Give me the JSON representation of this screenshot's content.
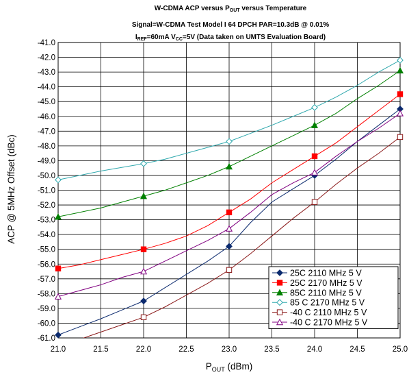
{
  "chart_data": {
    "type": "line",
    "title_parts": {
      "line1_prefix": "W-CDMA ACP versus P",
      "line1_sub": "OUT",
      "line1_suffix": " versus Temperature",
      "line2": "Signal=W-CDMA Test Model I 64 DPCH PAR=10.3dB @ 0.01%",
      "line3_a": "I",
      "line3_a_sub": "REF",
      "line3_b": "=60mA V",
      "line3_b_sub": "CC",
      "line3_c": "=5V (Data taken on UMTS Evaluation Board)"
    },
    "xlabel_main": "P",
    "xlabel_sub": "OUT",
    "xlabel_suffix": " (dBm)",
    "ylabel": "ACP @ 5MHz Offset (dBc)",
    "xlim": [
      21.0,
      25.0
    ],
    "ylim": [
      -61.0,
      -41.0
    ],
    "x_ticks": [
      "21.0",
      "21.5",
      "22.0",
      "22.5",
      "23.0",
      "23.5",
      "24.0",
      "24.5",
      "25.0"
    ],
    "y_ticks": [
      "-41.0",
      "-42.0",
      "-43.0",
      "-44.0",
      "-45.0",
      "-46.0",
      "-47.0",
      "-48.0",
      "-49.0",
      "-50.0",
      "-51.0",
      "-52.0",
      "-53.0",
      "-54.0",
      "-55.0",
      "-56.0",
      "-57.0",
      "-58.0",
      "-59.0",
      "-60.0",
      "-61.0"
    ],
    "grid": true,
    "legend_position": "bottom-right",
    "x_markers": [
      21,
      22,
      23,
      24,
      25
    ],
    "series": [
      {
        "name": "25C 2110 MHz  5 V",
        "color": "#0b2a6e",
        "marker": "diamond-filled",
        "x": [
          21.0,
          21.25,
          21.5,
          21.75,
          22.0,
          22.25,
          22.5,
          22.75,
          23.0,
          23.25,
          23.5,
          23.75,
          24.0,
          24.25,
          24.5,
          24.75,
          25.0
        ],
        "y": [
          -60.8,
          -60.25,
          -59.7,
          -59.1,
          -58.5,
          -57.6,
          -56.7,
          -55.8,
          -54.8,
          -53.2,
          -51.8,
          -50.9,
          -50.0,
          -48.9,
          -47.7,
          -46.6,
          -45.5
        ]
      },
      {
        "name": "25C 2170 MHz 5 V",
        "color": "#ff0000",
        "marker": "square-filled",
        "x": [
          21.0,
          21.25,
          21.5,
          21.75,
          22.0,
          22.25,
          22.5,
          22.75,
          23.0,
          23.25,
          23.5,
          23.75,
          24.0,
          24.25,
          24.5,
          24.75,
          25.0
        ],
        "y": [
          -56.3,
          -56.05,
          -55.7,
          -55.35,
          -55.0,
          -54.6,
          -54.1,
          -53.4,
          -52.5,
          -51.6,
          -50.5,
          -49.6,
          -48.7,
          -47.8,
          -46.7,
          -45.6,
          -44.5
        ]
      },
      {
        "name": "85C 2110 MHz  5 V",
        "color": "#008000",
        "marker": "triangle-filled",
        "x": [
          21.0,
          21.25,
          21.5,
          21.75,
          22.0,
          22.25,
          22.5,
          22.75,
          23.0,
          23.25,
          23.5,
          23.75,
          24.0,
          24.25,
          24.5,
          24.75,
          25.0
        ],
        "y": [
          -52.8,
          -52.5,
          -52.2,
          -51.8,
          -51.4,
          -51.0,
          -50.5,
          -50.0,
          -49.4,
          -48.7,
          -48.0,
          -47.3,
          -46.6,
          -45.8,
          -44.8,
          -43.9,
          -42.9
        ]
      },
      {
        "name": "85 C 2170 MHz  5 V",
        "color": "#2fa8ad",
        "marker": "diamond-open",
        "x": [
          21.0,
          21.25,
          21.5,
          21.75,
          22.0,
          22.25,
          22.5,
          22.75,
          23.0,
          23.25,
          23.5,
          23.75,
          24.0,
          24.25,
          24.5,
          24.75,
          25.0
        ],
        "y": [
          -50.3,
          -50.0,
          -49.7,
          -49.45,
          -49.2,
          -48.9,
          -48.5,
          -48.1,
          -47.7,
          -47.15,
          -46.6,
          -46.0,
          -45.4,
          -44.7,
          -43.9,
          -43.0,
          -42.2
        ]
      },
      {
        "name": "-40 C 2110 MHz  5 V",
        "color": "#8b1a1a",
        "marker": "square-open",
        "x": [
          21.0,
          21.25,
          21.5,
          21.75,
          22.0,
          22.25,
          22.5,
          22.75,
          23.0,
          23.25,
          23.5,
          23.75,
          24.0,
          24.25,
          24.5,
          24.75,
          25.0
        ],
        "y": [
          -61.6,
          -61.1,
          -60.6,
          -60.1,
          -59.6,
          -58.9,
          -58.1,
          -57.3,
          -56.4,
          -55.3,
          -54.1,
          -52.9,
          -51.8,
          -50.6,
          -49.5,
          -48.5,
          -47.4
        ]
      },
      {
        "name": "-40 C 2170 MHz  5 V",
        "color": "#800080",
        "marker": "triangle-open",
        "x": [
          21.0,
          21.25,
          21.5,
          21.75,
          22.0,
          22.25,
          22.5,
          22.75,
          23.0,
          23.25,
          23.5,
          23.75,
          24.0,
          24.25,
          24.5,
          24.75,
          25.0
        ],
        "y": [
          -58.2,
          -57.8,
          -57.4,
          -56.9,
          -56.5,
          -55.8,
          -55.1,
          -54.4,
          -53.6,
          -52.5,
          -51.3,
          -50.5,
          -49.8,
          -48.7,
          -47.7,
          -46.8,
          -45.8
        ]
      }
    ]
  }
}
